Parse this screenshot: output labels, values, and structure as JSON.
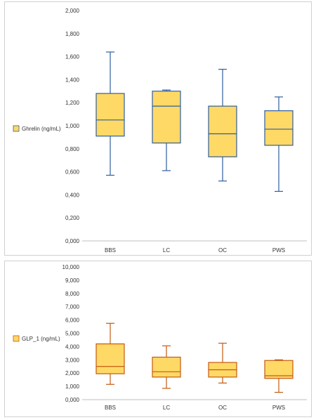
{
  "chart_data": [
    {
      "type": "box",
      "categories": [
        "BBS",
        "LC",
        "OC",
        "PWS"
      ],
      "ylim": [
        0,
        2
      ],
      "yticks": [
        "0,000",
        "0,200",
        "0,400",
        "0,600",
        "0,800",
        "1,000",
        "1,200",
        "1,400",
        "1,600",
        "1,800",
        "2,000"
      ],
      "ytick_values": [
        0,
        0.2,
        0.4,
        0.6,
        0.8,
        1.0,
        1.2,
        1.4,
        1.6,
        1.8,
        2.0
      ],
      "legend": "Ghrelin (ng/mL)",
      "legend_position": "left",
      "grid": false,
      "series": [
        {
          "category": "BBS",
          "min": 0.57,
          "q1": 0.91,
          "median": 1.05,
          "q3": 1.28,
          "max": 1.64
        },
        {
          "category": "LC",
          "min": 0.61,
          "q1": 0.85,
          "median": 1.17,
          "q3": 1.3,
          "max": 1.31
        },
        {
          "category": "OC",
          "min": 0.52,
          "q1": 0.73,
          "median": 0.93,
          "q3": 1.17,
          "max": 1.49
        },
        {
          "category": "PWS",
          "min": 0.43,
          "q1": 0.83,
          "median": 0.97,
          "q3": 1.13,
          "max": 1.25
        }
      ],
      "colors": {
        "fill": "#FFD966",
        "stroke": "#2E5E9E"
      }
    },
    {
      "type": "box",
      "categories": [
        "BBS",
        "LC",
        "OC",
        "PWS"
      ],
      "ylim": [
        0,
        10
      ],
      "yticks": [
        "0,000",
        "1,000",
        "2,000",
        "3,000",
        "4,000",
        "5,000",
        "6,000",
        "7,000",
        "8,000",
        "9,000",
        "10,000"
      ],
      "ytick_values": [
        0,
        1,
        2,
        3,
        4,
        5,
        6,
        7,
        8,
        9,
        10
      ],
      "legend": "GLP_1 (ng/mL)",
      "legend_position": "left",
      "grid": false,
      "series": [
        {
          "category": "BBS",
          "min": 1.15,
          "q1": 1.95,
          "median": 2.5,
          "q3": 4.2,
          "max": 5.75
        },
        {
          "category": "LC",
          "min": 0.85,
          "q1": 1.7,
          "median": 2.1,
          "q3": 3.2,
          "max": 4.05
        },
        {
          "category": "OC",
          "min": 1.25,
          "q1": 1.7,
          "median": 2.25,
          "q3": 2.8,
          "max": 4.25
        },
        {
          "category": "PWS",
          "min": 0.55,
          "q1": 1.6,
          "median": 1.8,
          "q3": 2.95,
          "max": 3.0
        }
      ],
      "colors": {
        "fill": "#FFD966",
        "stroke": "#C55A11"
      }
    }
  ]
}
